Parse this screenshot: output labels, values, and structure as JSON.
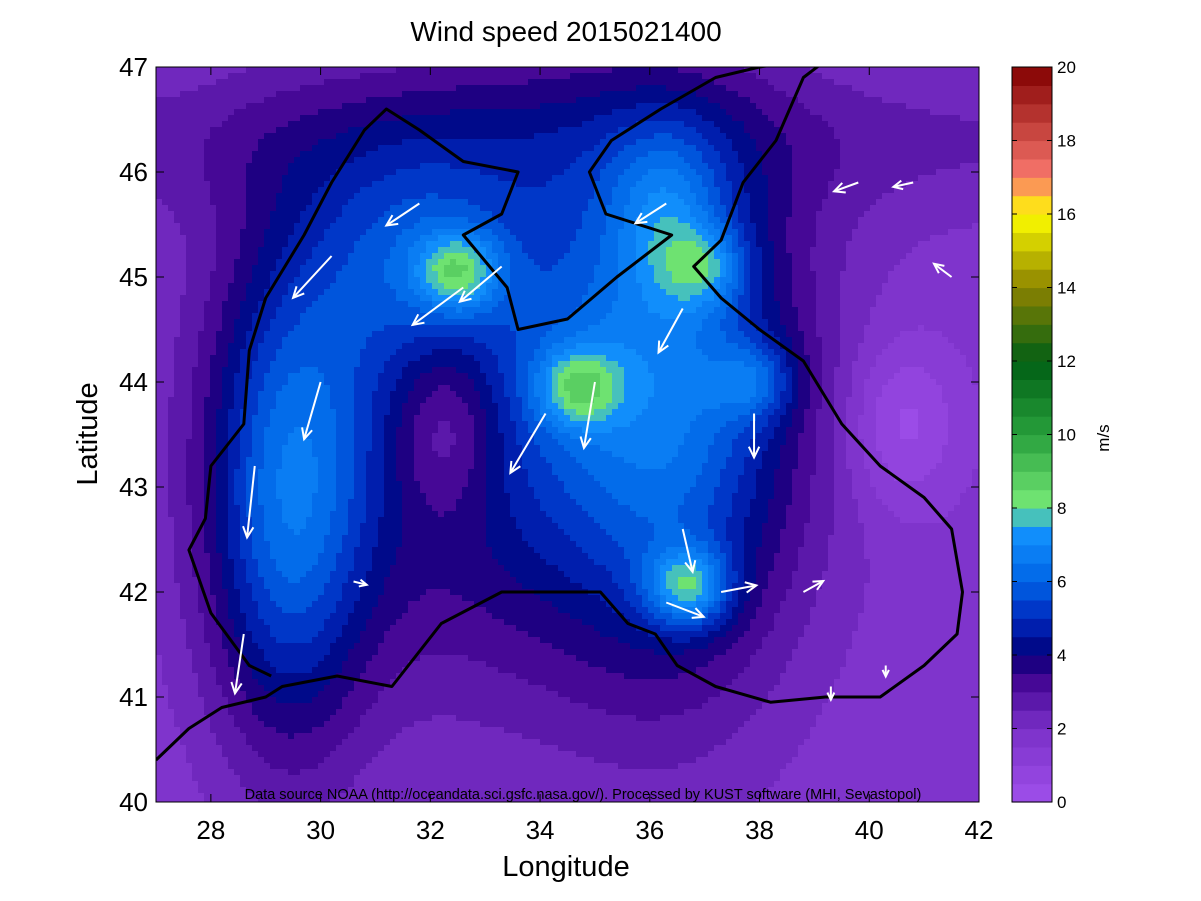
{
  "chart_data": {
    "type": "contour-map",
    "title": "Wind speed 2015021400",
    "xlabel": "Longitude",
    "ylabel": "Latitude",
    "xlim": [
      27,
      42
    ],
    "ylim": [
      40,
      47
    ],
    "xticks": [
      "28",
      "30",
      "32",
      "34",
      "36",
      "38",
      "40",
      "42"
    ],
    "yticks": [
      "40",
      "41",
      "42",
      "43",
      "44",
      "45",
      "46",
      "47"
    ],
    "colorbar": {
      "label": "m/s",
      "range": [
        0,
        20
      ],
      "ticks": [
        "0",
        "2",
        "4",
        "6",
        "8",
        "10",
        "12",
        "14",
        "16",
        "18",
        "20"
      ]
    },
    "source_note": "Data source NOAA (http://oceandata.sci.gsfc.nasa.gov/). Processed by KUST software (MHI, Sevastopol)",
    "wind_maxima": [
      {
        "lon": 32.5,
        "lat": 45.05,
        "speed": 8.7
      },
      {
        "lon": 34.7,
        "lat": 43.95,
        "speed": 8.5
      },
      {
        "lon": 36.7,
        "lat": 42.05,
        "speed": 9.2
      },
      {
        "lon": 37.0,
        "lat": 45.1,
        "speed": 7.8
      },
      {
        "lon": 37.9,
        "lat": 44.0,
        "speed": 7.6
      }
    ],
    "wind_vectors": [
      {
        "lon": 30.2,
        "lat": 45.2,
        "u": -3.5,
        "v": -3.8
      },
      {
        "lon": 31.8,
        "lat": 45.7,
        "u": -3.0,
        "v": -2.0
      },
      {
        "lon": 32.6,
        "lat": 44.9,
        "u": -4.6,
        "v": -3.4
      },
      {
        "lon": 33.3,
        "lat": 45.1,
        "u": -3.8,
        "v": -3.2
      },
      {
        "lon": 34.1,
        "lat": 43.7,
        "u": -3.2,
        "v": -5.4
      },
      {
        "lon": 35.0,
        "lat": 44.0,
        "u": -1.0,
        "v": -6.0
      },
      {
        "lon": 36.6,
        "lat": 44.7,
        "u": -2.2,
        "v": -4.0
      },
      {
        "lon": 36.3,
        "lat": 45.7,
        "u": -2.8,
        "v": -1.8
      },
      {
        "lon": 30.0,
        "lat": 44.0,
        "u": -1.5,
        "v": -5.2
      },
      {
        "lon": 28.8,
        "lat": 43.2,
        "u": -0.7,
        "v": -6.5
      },
      {
        "lon": 28.6,
        "lat": 41.6,
        "u": -0.8,
        "v": -5.4
      },
      {
        "lon": 37.9,
        "lat": 43.7,
        "u": 0.0,
        "v": -4.0
      },
      {
        "lon": 36.6,
        "lat": 42.6,
        "u": 0.9,
        "v": -3.9
      },
      {
        "lon": 37.3,
        "lat": 42.0,
        "u": 3.2,
        "v": 0.6
      },
      {
        "lon": 36.3,
        "lat": 41.9,
        "u": 3.4,
        "v": -1.3
      },
      {
        "lon": 38.8,
        "lat": 42.0,
        "u": 1.8,
        "v": 1.0
      },
      {
        "lon": 39.8,
        "lat": 45.9,
        "u": -2.2,
        "v": -0.8
      },
      {
        "lon": 40.8,
        "lat": 45.9,
        "u": -1.8,
        "v": -0.4
      },
      {
        "lon": 41.5,
        "lat": 45.0,
        "u": -1.6,
        "v": 1.2
      },
      {
        "lon": 30.6,
        "lat": 42.1,
        "u": 1.2,
        "v": -0.3
      },
      {
        "lon": 39.3,
        "lat": 41.1,
        "u": 0.0,
        "v": -1.2
      },
      {
        "lon": 40.3,
        "lat": 41.3,
        "u": 0.0,
        "v": -1.0
      }
    ]
  }
}
